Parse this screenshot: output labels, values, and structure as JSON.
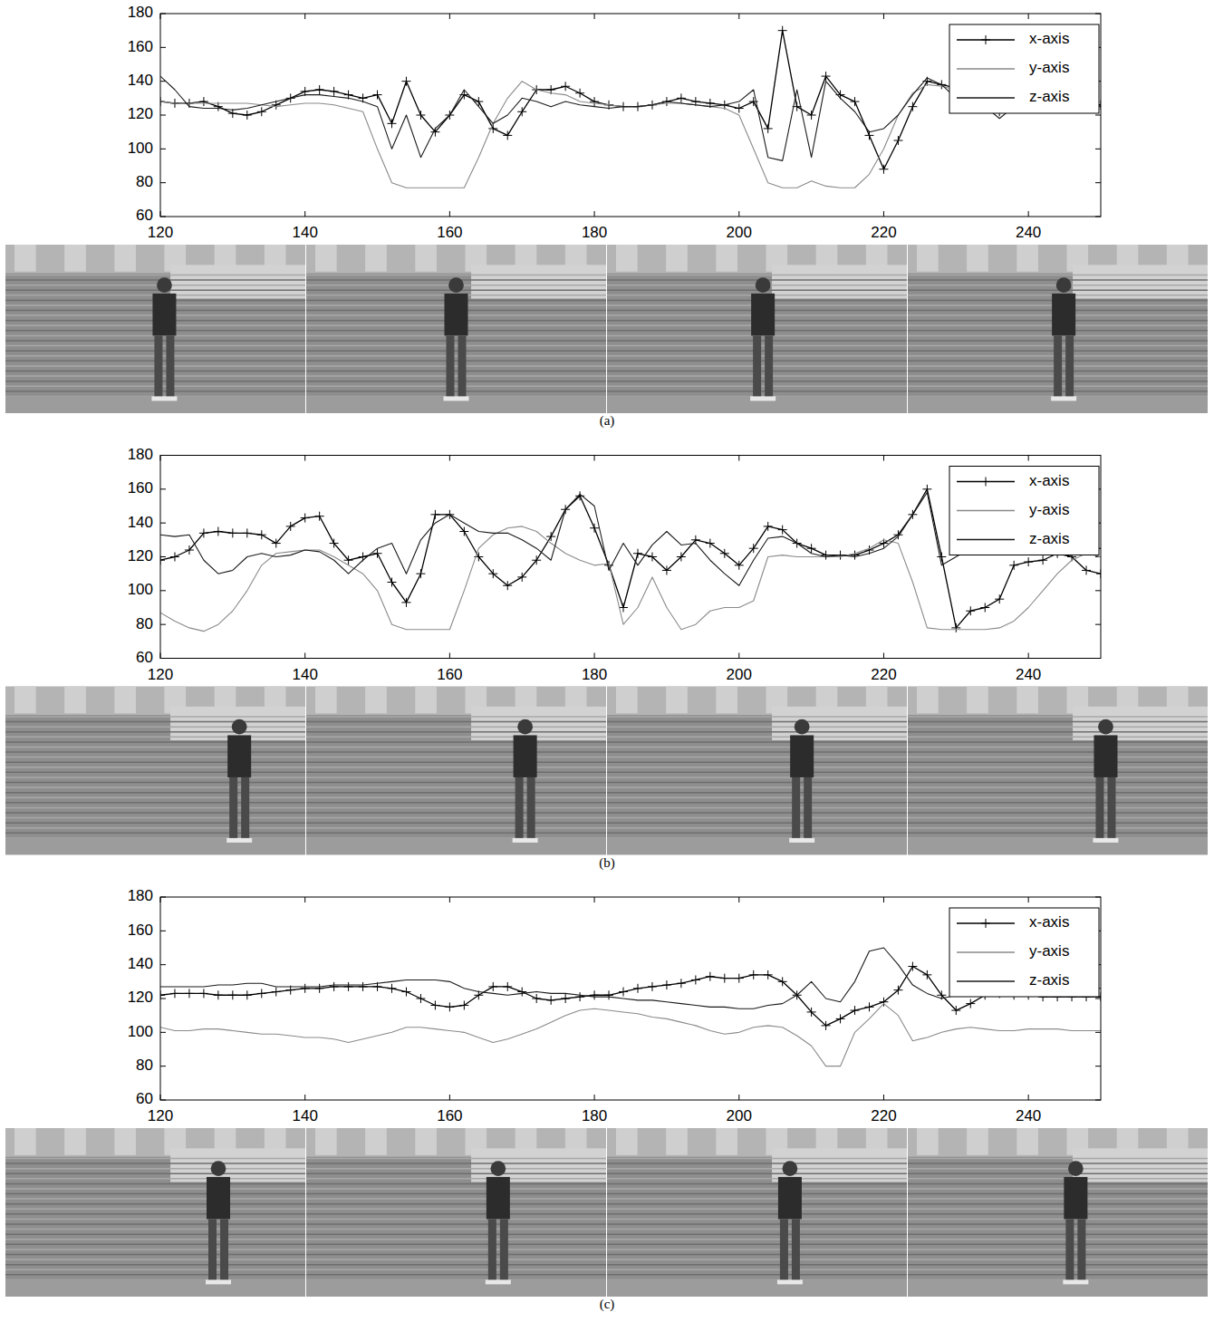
{
  "chart_data": [
    {
      "type": "line",
      "title": "(a)",
      "x": [
        120,
        122,
        124,
        126,
        128,
        130,
        132,
        134,
        136,
        138,
        140,
        142,
        144,
        146,
        148,
        150,
        152,
        154,
        156,
        158,
        160,
        162,
        164,
        166,
        168,
        170,
        172,
        174,
        176,
        178,
        180,
        182,
        184,
        186,
        188,
        190,
        192,
        194,
        196,
        198,
        200,
        202,
        204,
        206,
        208,
        210,
        212,
        214,
        216,
        218,
        220,
        222,
        224,
        226,
        228,
        230,
        232,
        234,
        236,
        238,
        240,
        242,
        244,
        246,
        248,
        250
      ],
      "xlim": [
        120,
        250
      ],
      "xticks": [
        120,
        140,
        160,
        180,
        200,
        220,
        240
      ],
      "ylim": [
        60,
        180
      ],
      "yticks": [
        60,
        80,
        100,
        120,
        140,
        160,
        180
      ],
      "legend": "northeast",
      "series": [
        {
          "name": "x-axis",
          "color": "#000000",
          "marker": "plus",
          "line_style": "solid",
          "values": [
            128,
            127,
            127,
            128,
            125,
            121,
            120,
            122,
            126,
            130,
            134,
            135,
            134,
            132,
            130,
            132,
            115,
            140,
            120,
            110,
            120,
            132,
            128,
            112,
            108,
            122,
            135,
            135,
            137,
            133,
            128,
            126,
            125,
            125,
            126,
            128,
            130,
            128,
            127,
            126,
            124,
            128,
            112,
            170,
            125,
            120,
            143,
            132,
            128,
            108,
            88,
            105,
            125,
            140,
            138,
            136,
            132,
            128,
            122,
            125,
            128,
            127,
            127,
            127,
            127,
            126
          ]
        },
        {
          "name": "y-axis",
          "color": "#8a8a8a",
          "marker": "none",
          "line_style": "solid",
          "values": [
            128,
            127,
            127,
            127,
            127,
            127,
            127,
            126,
            125,
            126,
            127,
            127,
            126,
            124,
            122,
            100,
            80,
            77,
            77,
            77,
            77,
            77,
            95,
            115,
            130,
            140,
            135,
            133,
            132,
            128,
            127,
            126,
            125,
            125,
            126,
            127,
            127,
            126,
            125,
            124,
            120,
            100,
            80,
            77,
            77,
            81,
            78,
            77,
            77,
            85,
            100,
            120,
            133,
            138,
            137,
            135,
            125,
            122,
            122,
            124,
            126,
            126,
            126,
            126,
            126,
            125
          ]
        },
        {
          "name": "z-axis",
          "color": "#1a1a1a",
          "marker": "none",
          "line_style": "solid",
          "values": [
            143,
            135,
            125,
            124,
            124,
            123,
            124,
            126,
            128,
            130,
            132,
            132,
            131,
            130,
            128,
            125,
            100,
            120,
            95,
            112,
            120,
            135,
            125,
            115,
            120,
            130,
            128,
            125,
            128,
            126,
            125,
            124,
            125,
            125,
            126,
            128,
            127,
            126,
            125,
            126,
            128,
            135,
            95,
            93,
            135,
            95,
            140,
            130,
            122,
            110,
            112,
            120,
            132,
            142,
            138,
            130,
            128,
            125,
            118,
            125,
            128,
            127,
            127,
            127,
            127,
            125
          ]
        }
      ]
    },
    {
      "type": "line",
      "title": "(b)",
      "x": [
        120,
        122,
        124,
        126,
        128,
        130,
        132,
        134,
        136,
        138,
        140,
        142,
        144,
        146,
        148,
        150,
        152,
        154,
        156,
        158,
        160,
        162,
        164,
        166,
        168,
        170,
        172,
        174,
        176,
        178,
        180,
        182,
        184,
        186,
        188,
        190,
        192,
        194,
        196,
        198,
        200,
        202,
        204,
        206,
        208,
        210,
        212,
        214,
        216,
        218,
        220,
        222,
        224,
        226,
        228,
        230,
        232,
        234,
        236,
        238,
        240,
        242,
        244,
        246,
        248,
        250
      ],
      "xlim": [
        120,
        250
      ],
      "xticks": [
        120,
        140,
        160,
        180,
        200,
        220,
        240
      ],
      "ylim": [
        60,
        180
      ],
      "yticks": [
        60,
        80,
        100,
        120,
        140,
        160,
        180
      ],
      "legend": "northeast",
      "series": [
        {
          "name": "x-axis",
          "color": "#000000",
          "marker": "plus",
          "line_style": "solid",
          "values": [
            118,
            120,
            124,
            134,
            135,
            134,
            134,
            133,
            128,
            138,
            143,
            144,
            128,
            118,
            120,
            122,
            105,
            93,
            110,
            145,
            145,
            135,
            120,
            110,
            103,
            108,
            118,
            132,
            148,
            156,
            137,
            115,
            90,
            122,
            120,
            112,
            120,
            130,
            128,
            122,
            115,
            125,
            138,
            136,
            128,
            125,
            121,
            121,
            121,
            124,
            128,
            133,
            145,
            160,
            120,
            78,
            88,
            90,
            95,
            115,
            117,
            118,
            122,
            120,
            112,
            110
          ]
        },
        {
          "name": "y-axis",
          "color": "#8a8a8a",
          "marker": "none",
          "line_style": "solid",
          "values": [
            87,
            82,
            78,
            76,
            80,
            88,
            100,
            115,
            122,
            123,
            124,
            124,
            120,
            115,
            110,
            100,
            80,
            77,
            77,
            77,
            77,
            100,
            125,
            133,
            137,
            138,
            135,
            128,
            122,
            118,
            115,
            116,
            80,
            90,
            108,
            90,
            77,
            80,
            88,
            90,
            90,
            94,
            120,
            121,
            120,
            120,
            120,
            120,
            122,
            125,
            130,
            128,
            105,
            78,
            77,
            77,
            77,
            77,
            78,
            82,
            90,
            100,
            110,
            118,
            122,
            120
          ]
        },
        {
          "name": "z-axis",
          "color": "#1a1a1a",
          "marker": "none",
          "line_style": "solid",
          "values": [
            133,
            132,
            133,
            118,
            110,
            112,
            120,
            122,
            120,
            121,
            124,
            123,
            118,
            110,
            118,
            125,
            128,
            110,
            130,
            140,
            145,
            140,
            135,
            134,
            134,
            130,
            125,
            118,
            148,
            157,
            150,
            112,
            128,
            115,
            127,
            135,
            127,
            128,
            118,
            110,
            103,
            118,
            131,
            132,
            128,
            122,
            120,
            121,
            120,
            122,
            125,
            132,
            145,
            158,
            115,
            120,
            125,
            128,
            128,
            126,
            126,
            126,
            125,
            124,
            124,
            125
          ]
        }
      ]
    },
    {
      "type": "line",
      "title": "(c)",
      "x": [
        120,
        122,
        124,
        126,
        128,
        130,
        132,
        134,
        136,
        138,
        140,
        142,
        144,
        146,
        148,
        150,
        152,
        154,
        156,
        158,
        160,
        162,
        164,
        166,
        168,
        170,
        172,
        174,
        176,
        178,
        180,
        182,
        184,
        186,
        188,
        190,
        192,
        194,
        196,
        198,
        200,
        202,
        204,
        206,
        208,
        210,
        212,
        214,
        216,
        218,
        220,
        222,
        224,
        226,
        228,
        230,
        232,
        234,
        236,
        238,
        240,
        242,
        244,
        246,
        248,
        250
      ],
      "xlim": [
        120,
        250
      ],
      "xticks": [
        120,
        140,
        160,
        180,
        200,
        220,
        240
      ],
      "ylim": [
        60,
        180
      ],
      "yticks": [
        60,
        80,
        100,
        120,
        140,
        160,
        180
      ],
      "legend": "northeast",
      "series": [
        {
          "name": "x-axis",
          "color": "#000000",
          "marker": "plus",
          "line_style": "solid",
          "values": [
            122,
            123,
            123,
            123,
            122,
            122,
            122,
            123,
            124,
            125,
            126,
            126,
            127,
            127,
            127,
            127,
            126,
            124,
            120,
            116,
            115,
            116,
            122,
            127,
            127,
            124,
            120,
            119,
            120,
            121,
            122,
            122,
            124,
            126,
            127,
            128,
            129,
            131,
            133,
            132,
            132,
            134,
            134,
            130,
            122,
            112,
            104,
            108,
            113,
            115,
            118,
            125,
            139,
            134,
            122,
            113,
            117,
            122,
            123,
            122,
            122,
            121,
            121,
            121,
            121,
            121
          ]
        },
        {
          "name": "y-axis",
          "color": "#8a8a8a",
          "marker": "none",
          "line_style": "solid",
          "values": [
            103,
            101,
            101,
            102,
            102,
            101,
            100,
            99,
            99,
            98,
            97,
            97,
            96,
            94,
            96,
            98,
            100,
            103,
            103,
            102,
            101,
            100,
            97,
            94,
            96,
            99,
            102,
            106,
            110,
            113,
            114,
            113,
            112,
            111,
            109,
            108,
            106,
            104,
            101,
            99,
            100,
            103,
            104,
            103,
            98,
            92,
            80,
            80,
            100,
            108,
            117,
            110,
            95,
            97,
            100,
            102,
            103,
            102,
            101,
            101,
            102,
            102,
            102,
            101,
            101,
            101
          ]
        },
        {
          "name": "z-axis",
          "color": "#1a1a1a",
          "marker": "none",
          "line_style": "solid",
          "values": [
            127,
            127,
            127,
            127,
            128,
            128,
            129,
            129,
            127,
            127,
            127,
            127,
            128,
            128,
            128,
            129,
            130,
            131,
            131,
            131,
            130,
            126,
            124,
            123,
            122,
            123,
            124,
            123,
            123,
            122,
            121,
            121,
            120,
            119,
            119,
            118,
            117,
            116,
            115,
            115,
            114,
            114,
            116,
            117,
            122,
            130,
            120,
            118,
            130,
            148,
            150,
            140,
            128,
            123,
            120,
            122,
            124,
            125,
            126,
            126,
            126,
            126,
            126,
            126,
            126,
            126
          ]
        }
      ]
    }
  ]
}
